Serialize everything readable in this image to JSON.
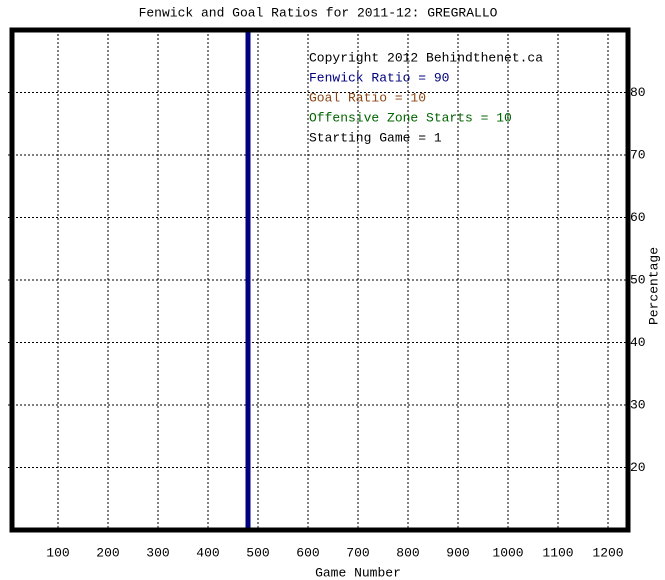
{
  "chart_data": {
    "type": "line",
    "title": "Fenwick and Goal Ratios for 2011-12: GREGRALLO",
    "xlabel": "Game Number",
    "ylabel": "Percentage",
    "xlim": [
      0,
      1240
    ],
    "ylim": [
      10,
      90
    ],
    "xticks": [
      100,
      200,
      300,
      400,
      500,
      600,
      700,
      800,
      900,
      1000,
      1100,
      1200
    ],
    "yticks": [
      20,
      30,
      40,
      50,
      60,
      70,
      80
    ],
    "grid": true,
    "reference_line": {
      "x": 480,
      "color": "#000080"
    },
    "annotations": [
      {
        "text": "Copyright 2012 Behindthenet.ca",
        "color": "#000000"
      },
      {
        "text": "Fenwick Ratio = 90",
        "color": "#000080"
      },
      {
        "text": "Goal Ratio = 10",
        "color": "#8b4513"
      },
      {
        "text": "Offensive Zone Starts = 10",
        "color": "#006400"
      },
      {
        "text": "Starting Game = 1",
        "color": "#000000"
      }
    ]
  }
}
